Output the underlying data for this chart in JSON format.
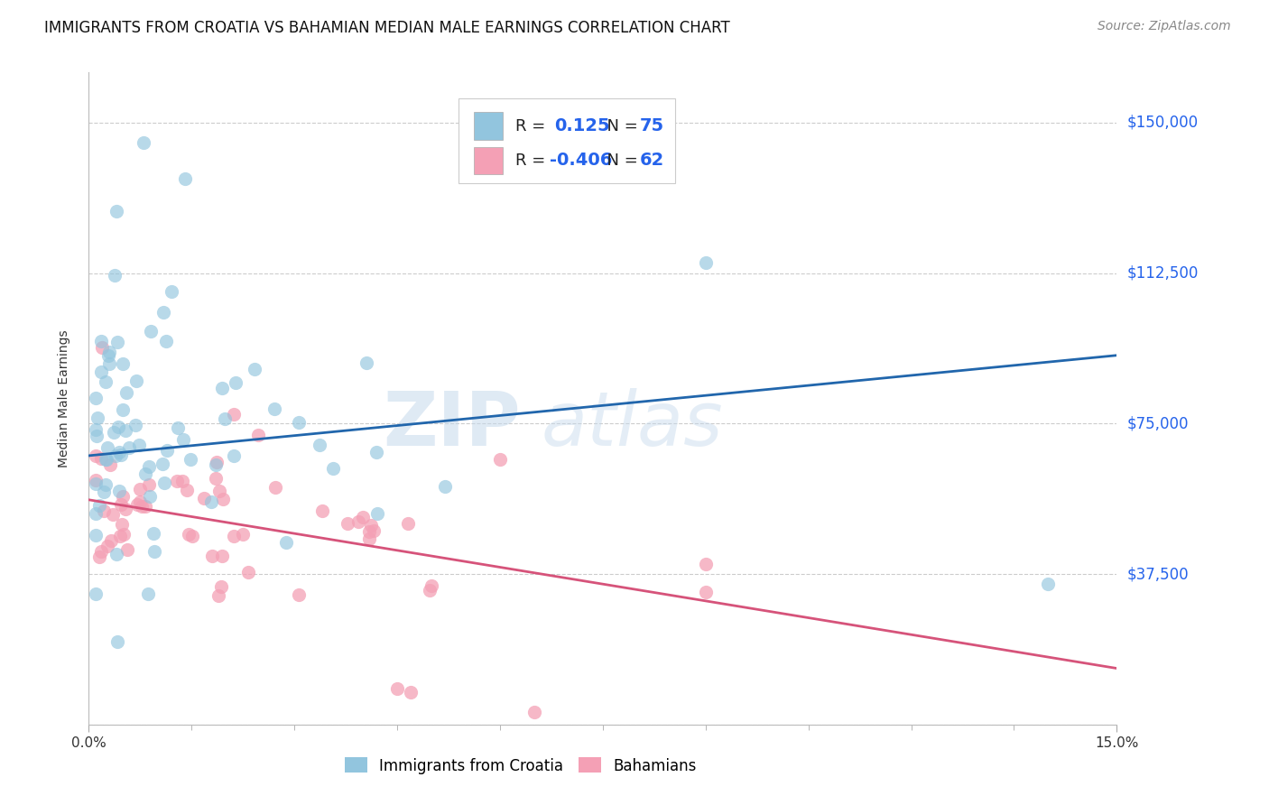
{
  "title": "IMMIGRANTS FROM CROATIA VS BAHAMIAN MEDIAN MALE EARNINGS CORRELATION CHART",
  "source": "Source: ZipAtlas.com",
  "ylabel": "Median Male Earnings",
  "xlim": [
    0.0,
    0.15
  ],
  "ylim": [
    0,
    162500
  ],
  "yticks": [
    0,
    37500,
    75000,
    112500,
    150000
  ],
  "ytick_labels": [
    "",
    "$37,500",
    "$75,000",
    "$112,500",
    "$150,000"
  ],
  "xtick_positions": [
    0.0,
    0.15
  ],
  "xtick_labels": [
    "0.0%",
    "15.0%"
  ],
  "blue_R": 0.125,
  "blue_N": 75,
  "pink_R": -0.406,
  "pink_N": 62,
  "blue_color": "#92c5de",
  "blue_line_color": "#2166ac",
  "pink_color": "#f4a0b5",
  "pink_line_color": "#d6537a",
  "label_color": "#2563EB",
  "background_color": "#ffffff",
  "blue_line_y0": 67000,
  "blue_line_y1": 92000,
  "pink_line_y0": 56000,
  "pink_line_y1": 14000,
  "title_fontsize": 12,
  "source_fontsize": 10,
  "series1_label": "Immigrants from Croatia",
  "series2_label": "Bahamians",
  "legend_R_label_color": "#111111",
  "legend_value_color": "#2563EB"
}
